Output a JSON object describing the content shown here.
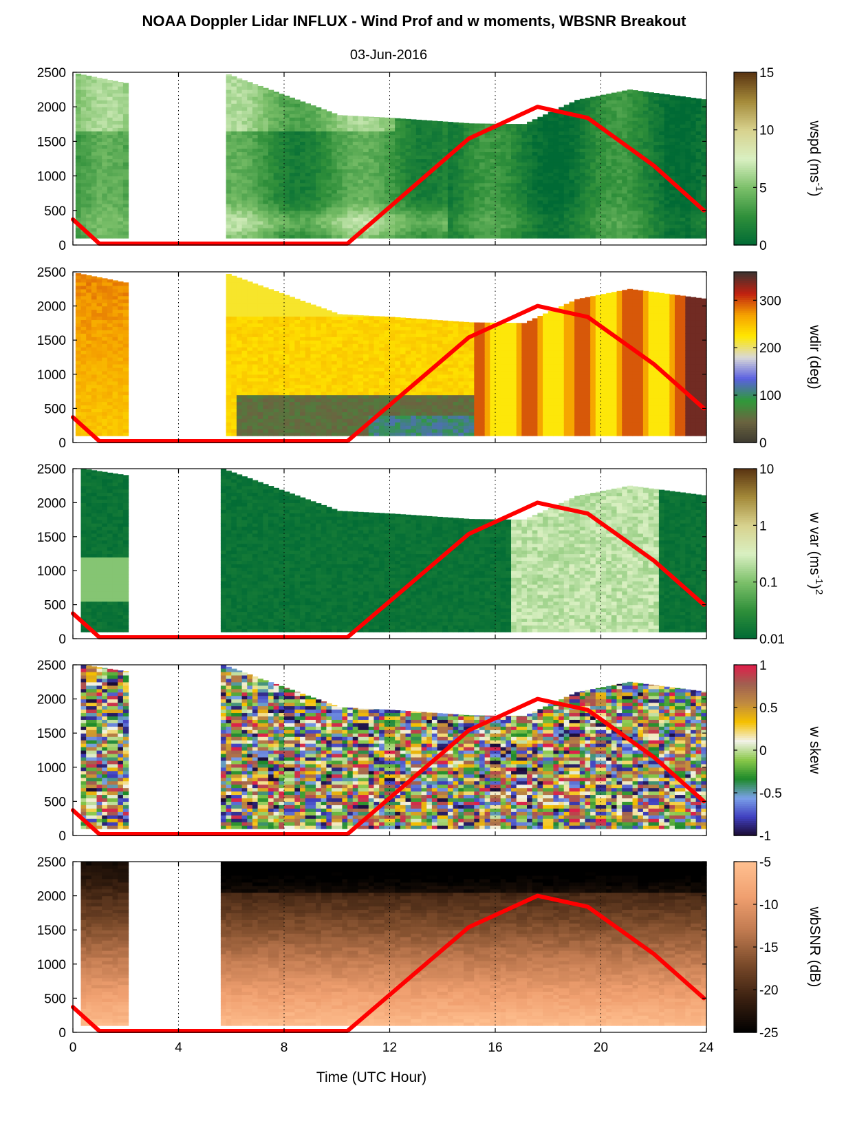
{
  "figure": {
    "title": "NOAA Doppler Lidar INFLUX - Wind Prof and w moments, WBSNR Breakout",
    "subtitle": "03-Jun-2016",
    "xlabel": "Time (UTC Hour)",
    "x_ticks": [
      "0",
      "4",
      "8",
      "12",
      "16",
      "20",
      "24"
    ]
  },
  "chart_data": [
    {
      "type": "heatmap",
      "variable": "wspd",
      "colorbar_label": "wspd (ms-1)",
      "colorbar_label_parts": [
        "wspd (ms",
        "-1",
        ")"
      ],
      "colorbar_ticks": [
        "0",
        "5",
        "10",
        "15"
      ],
      "clim": [
        0,
        15
      ],
      "colormap": [
        "#006a35",
        "#2f8f3a",
        "#7cc06a",
        "#d9f0c2",
        "#d8d28e",
        "#a48a3a",
        "#5a3411"
      ],
      "x_range": [
        0,
        24
      ],
      "y_range": [
        0,
        2500
      ],
      "y_ticks": [
        "0",
        "500",
        "1000",
        "1500",
        "2000",
        "2500"
      ],
      "data_segments": [
        [
          0.1,
          2.1
        ],
        [
          5.8,
          24.0
        ]
      ],
      "top_height_profile": {
        "x": [
          0.1,
          2.1,
          5.8,
          10,
          12,
          15,
          17,
          19,
          21,
          24
        ],
        "y": [
          2480,
          2330,
          2470,
          1880,
          1840,
          1760,
          1750,
          2100,
          2250,
          2100
        ]
      },
      "overlay_line": {
        "color": "#ff0000",
        "x": [
          0,
          1,
          1.8,
          5.8,
          10.4,
          13,
          15,
          17.6,
          19.5,
          22,
          23.9
        ],
        "y": [
          370,
          20,
          20,
          20,
          20,
          880,
          1540,
          2000,
          1840,
          1150,
          500
        ]
      }
    },
    {
      "type": "heatmap",
      "variable": "wdir",
      "colorbar_label": "wdir (deg)",
      "colorbar_ticks": [
        "0",
        "100",
        "200",
        "300"
      ],
      "clim": [
        0,
        360
      ],
      "colormap": [
        "#3d3a30",
        "#6b6440",
        "#2f9a3a",
        "#5a60e0",
        "#d8d8d8",
        "#ffe800",
        "#f5a000",
        "#c02010",
        "#3d3330"
      ],
      "x_range": [
        0,
        24
      ],
      "y_range": [
        0,
        2500
      ],
      "y_ticks": [
        "0",
        "500",
        "1000",
        "1500",
        "2000",
        "2500"
      ],
      "data_segments": [
        [
          0.1,
          2.1
        ],
        [
          5.8,
          24.0
        ]
      ],
      "top_height_profile": {
        "x": [
          0.1,
          2.1,
          5.8,
          10,
          12,
          15,
          17,
          19,
          21,
          24
        ],
        "y": [
          2480,
          2330,
          2470,
          1880,
          1840,
          1760,
          1750,
          2100,
          2250,
          2100
        ]
      },
      "overlay_line": {
        "color": "#ff0000",
        "x": [
          0,
          1,
          1.8,
          5.8,
          10.4,
          13,
          15,
          17.6,
          19.5,
          22,
          23.9
        ],
        "y": [
          370,
          20,
          20,
          20,
          20,
          880,
          1540,
          2000,
          1840,
          1150,
          500
        ]
      }
    },
    {
      "type": "heatmap",
      "variable": "w var",
      "colorbar_label": "w var (ms-1)2",
      "colorbar_label_parts": [
        "w var (ms",
        "-1",
        ")",
        "2"
      ],
      "colorbar_ticks": [
        "0.01",
        "0.1",
        "1",
        "10"
      ],
      "clim": [
        0.01,
        10
      ],
      "colorbar_scale": "log",
      "colormap": [
        "#006a35",
        "#2f8f3a",
        "#7cc06a",
        "#d9f0c2",
        "#d8d28e",
        "#a48a3a",
        "#5a3411"
      ],
      "x_range": [
        0,
        24
      ],
      "y_range": [
        0,
        2500
      ],
      "y_ticks": [
        "0",
        "500",
        "1000",
        "1500",
        "2000",
        "2500"
      ],
      "data_segments": [
        [
          0.3,
          2.0
        ],
        [
          5.6,
          24.0
        ]
      ],
      "top_height_profile": {
        "x": [
          0.3,
          2.0,
          5.6,
          10,
          12,
          15,
          17,
          19,
          21,
          24
        ],
        "y": [
          2500,
          2400,
          2500,
          1880,
          1840,
          1760,
          1750,
          2100,
          2250,
          2100
        ]
      },
      "overlay_line": {
        "color": "#ff0000",
        "x": [
          0,
          1,
          1.8,
          5.8,
          10.4,
          13,
          15,
          17.6,
          19.5,
          22,
          23.9
        ],
        "y": [
          370,
          20,
          20,
          20,
          20,
          880,
          1540,
          2000,
          1840,
          1150,
          500
        ]
      }
    },
    {
      "type": "heatmap",
      "variable": "w skew",
      "colorbar_label": "w skew",
      "colorbar_ticks": [
        "-1",
        "-0.5",
        "0",
        "0.5",
        "1"
      ],
      "clim": [
        -1,
        1
      ],
      "colormap": [
        "#1a0a30",
        "#4040c0",
        "#7aa0e8",
        "#1e8a2a",
        "#8ac84a",
        "#f2f2e8",
        "#f5c000",
        "#c08a40",
        "#a06050",
        "#e01e4a"
      ],
      "x_range": [
        0,
        24
      ],
      "y_range": [
        0,
        2500
      ],
      "y_ticks": [
        "0",
        "500",
        "1000",
        "1500",
        "2000",
        "2500"
      ],
      "data_segments": [
        [
          0.3,
          2.0
        ],
        [
          5.6,
          24.0
        ]
      ],
      "top_height_profile": {
        "x": [
          0.3,
          2.0,
          5.6,
          10,
          12,
          15,
          17,
          19,
          21,
          24
        ],
        "y": [
          2500,
          2400,
          2500,
          1880,
          1840,
          1760,
          1750,
          2100,
          2250,
          2100
        ]
      },
      "overlay_line": {
        "color": "#ff0000",
        "x": [
          0,
          1,
          1.8,
          5.8,
          10.4,
          13,
          15,
          17.6,
          19.5,
          22,
          23.9
        ],
        "y": [
          370,
          20,
          20,
          20,
          20,
          880,
          1540,
          2000,
          1840,
          1150,
          500
        ]
      }
    },
    {
      "type": "heatmap",
      "variable": "wbSNR",
      "colorbar_label": "wbSNR (dB)",
      "colorbar_ticks": [
        "-25",
        "-20",
        "-15",
        "-10",
        "-5"
      ],
      "clim": [
        -25,
        -5
      ],
      "colormap": [
        "#000000",
        "#3a2010",
        "#7a4a2a",
        "#c07a50",
        "#f0a070",
        "#ffc090"
      ],
      "x_range": [
        0,
        24
      ],
      "y_range": [
        0,
        2500
      ],
      "y_ticks": [
        "0",
        "500",
        "1000",
        "1500",
        "2000",
        "2500"
      ],
      "data_segments": [
        [
          0.3,
          2.0
        ],
        [
          5.6,
          24.0
        ]
      ],
      "top_height_profile": {
        "x": [
          0.3,
          24.0
        ],
        "y": [
          2500,
          2500
        ]
      },
      "overlay_line": {
        "color": "#ff0000",
        "x": [
          0,
          1,
          1.8,
          5.8,
          10.4,
          13,
          15,
          17.6,
          19.5,
          22,
          23.9
        ],
        "y": [
          370,
          20,
          20,
          20,
          20,
          880,
          1540,
          2000,
          1840,
          1150,
          500
        ]
      }
    }
  ]
}
